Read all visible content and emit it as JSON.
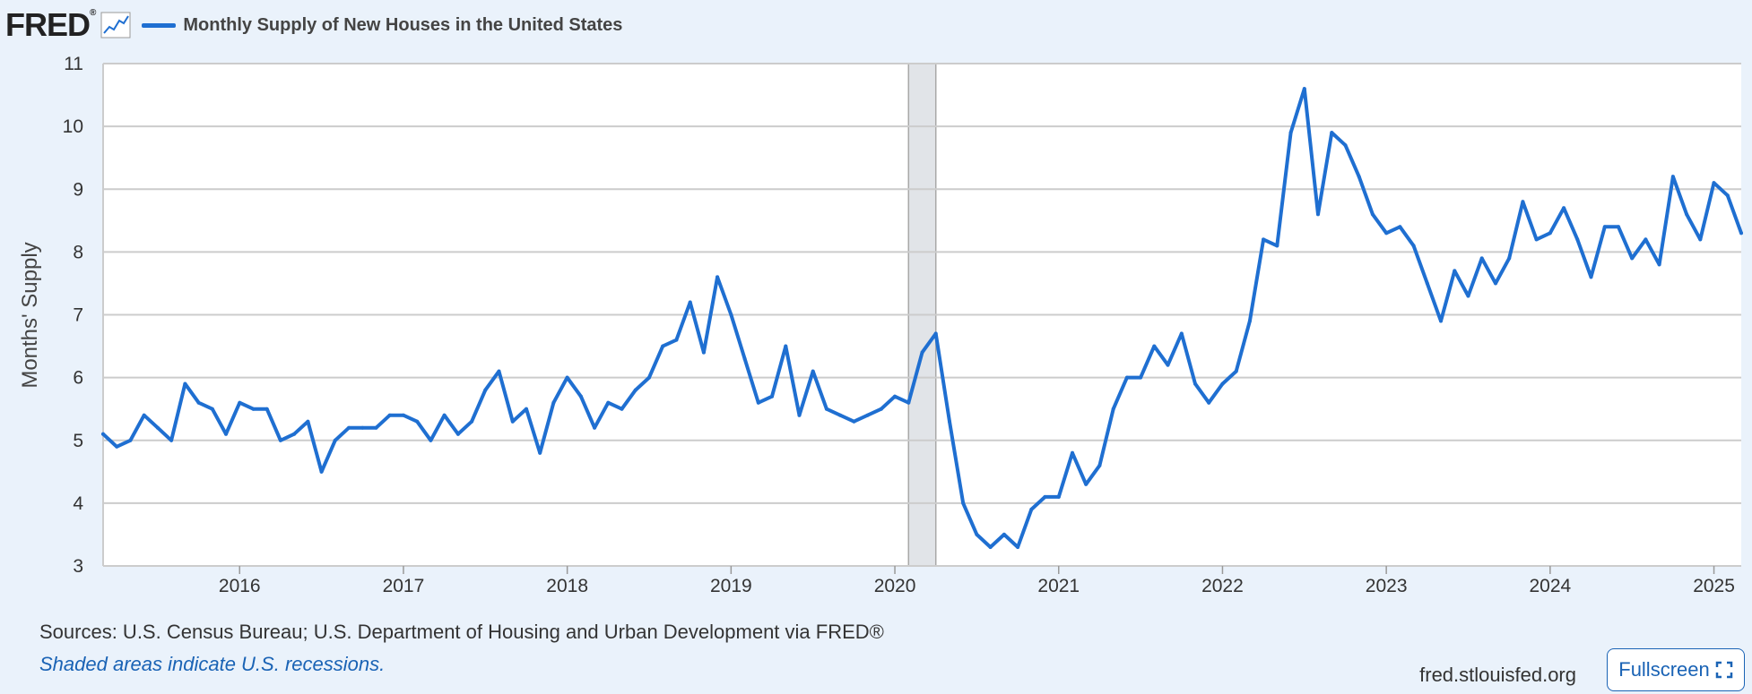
{
  "header": {
    "logo_text": "FRED",
    "logo_reg": "®",
    "title": "Monthly Supply of New Houses in the United States"
  },
  "footer": {
    "sources": "Sources: U.S. Census Bureau; U.S. Department of Housing and Urban Development via FRED®",
    "recession_note": "Shaded areas indicate U.S. recessions.",
    "site": "fred.stlouisfed.org",
    "fullscreen_label": "Fullscreen"
  },
  "colors": {
    "series": "#1f6fd1",
    "grid": "#cccccc",
    "recession": "#e1e4e8",
    "plot_bg": "#ffffff"
  },
  "chart_data": {
    "type": "line",
    "title": "Monthly Supply of New Houses in the United States",
    "ylabel": "Months' Supply",
    "xlabel": "",
    "ylim": [
      3,
      11
    ],
    "yticks": [
      3,
      4,
      5,
      6,
      7,
      8,
      9,
      10,
      11
    ],
    "xlim_start": "2015-03",
    "xlim_end": "2025-03",
    "xticks": [
      "2016",
      "2017",
      "2018",
      "2019",
      "2020",
      "2021",
      "2022",
      "2023",
      "2024",
      "2025"
    ],
    "recessions": [
      {
        "start": "2020-02",
        "end": "2020-04"
      }
    ],
    "series": [
      {
        "name": "Monthly Supply of New Houses in the United States",
        "start": "2015-03",
        "values": [
          5.1,
          4.9,
          5.0,
          5.4,
          5.2,
          5.0,
          5.9,
          5.6,
          5.5,
          5.1,
          5.6,
          5.5,
          5.5,
          5.0,
          5.1,
          5.3,
          4.5,
          5.0,
          5.2,
          5.2,
          5.2,
          5.4,
          5.4,
          5.3,
          5.0,
          5.4,
          5.1,
          5.3,
          5.8,
          6.1,
          5.3,
          5.5,
          4.8,
          5.6,
          6.0,
          5.7,
          5.2,
          5.6,
          5.5,
          5.8,
          6.0,
          6.5,
          6.6,
          7.2,
          6.4,
          7.6,
          7.0,
          6.3,
          5.6,
          5.7,
          6.5,
          5.4,
          6.1,
          5.5,
          5.4,
          5.3,
          5.4,
          5.5,
          5.7,
          5.6,
          6.4,
          6.7,
          5.3,
          4.0,
          3.5,
          3.3,
          3.5,
          3.3,
          3.9,
          4.1,
          4.1,
          4.8,
          4.3,
          4.6,
          5.5,
          6.0,
          6.0,
          6.5,
          6.2,
          6.7,
          5.9,
          5.6,
          5.9,
          6.1,
          6.9,
          8.2,
          8.1,
          9.9,
          10.6,
          8.6,
          9.9,
          9.7,
          9.2,
          8.6,
          8.3,
          8.4,
          8.1,
          7.5,
          6.9,
          7.7,
          7.3,
          7.9,
          7.5,
          7.9,
          8.8,
          8.2,
          8.3,
          8.7,
          8.2,
          7.6,
          8.4,
          8.4,
          7.9,
          8.2,
          7.8,
          9.2,
          8.6,
          8.2,
          9.1,
          8.9,
          8.3
        ]
      }
    ]
  }
}
